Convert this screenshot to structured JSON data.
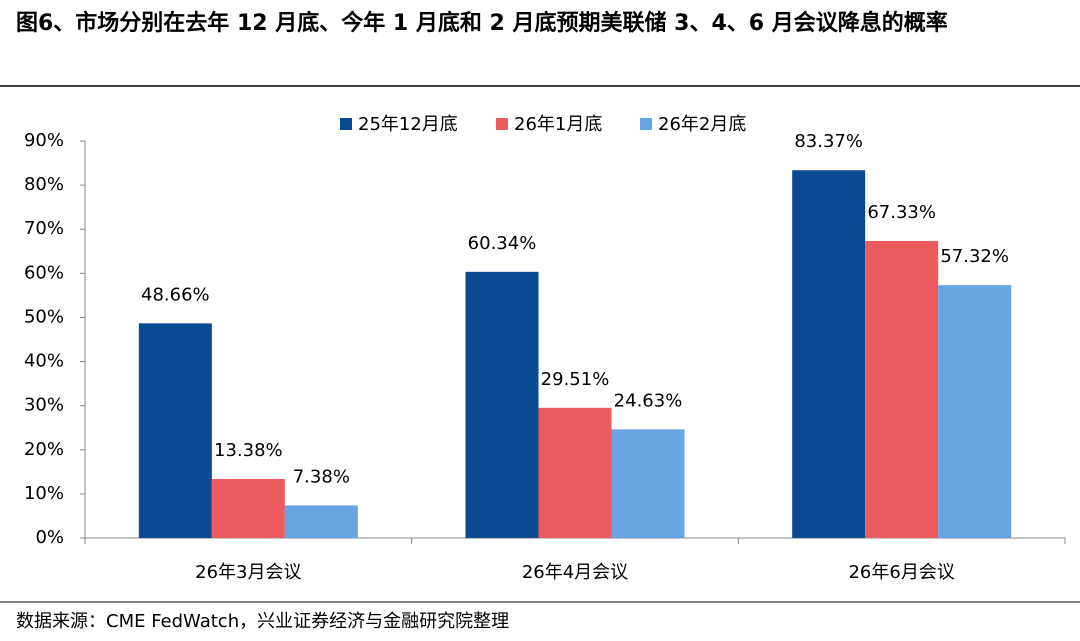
{
  "chart_data": {
    "type": "bar",
    "title": "图6、市场分别在去年 12 月底、今年 1 月底和 2 月底预期美联储 3、4、6 月会议降息的概率",
    "source": "数据来源：CME FedWatch，兴业证券经济与金融研究院整理",
    "categories": [
      "26年3月会议",
      "26年4月会议",
      "26年6月会议"
    ],
    "series": [
      {
        "name": "25年12月底",
        "color": "#0a4a92",
        "values": [
          48.66,
          60.34,
          83.37
        ],
        "value_labels": [
          "48.66%",
          "60.34%",
          "83.37%"
        ]
      },
      {
        "name": "26年1月底",
        "color": "#ec5b5e",
        "values": [
          13.38,
          29.51,
          67.33
        ],
        "value_labels": [
          "13.38%",
          "29.51%",
          "67.33%"
        ]
      },
      {
        "name": "26年2月底",
        "color": "#67a4e2",
        "values": [
          7.38,
          24.63,
          57.32
        ],
        "value_labels": [
          "7.38%",
          "24.63%",
          "57.32%"
        ]
      }
    ],
    "ylim": [
      0,
      90
    ],
    "yticks": [
      {
        "value": 0,
        "label": "0%"
      },
      {
        "value": 10,
        "label": "10%"
      },
      {
        "value": 20,
        "label": "20%"
      },
      {
        "value": 30,
        "label": "30%"
      },
      {
        "value": 40,
        "label": "40%"
      },
      {
        "value": 50,
        "label": "50%"
      },
      {
        "value": 60,
        "label": "60%"
      },
      {
        "value": 70,
        "label": "70%"
      },
      {
        "value": 80,
        "label": "80%"
      },
      {
        "value": 90,
        "label": "90%"
      }
    ],
    "grid": false,
    "legend": "top"
  }
}
